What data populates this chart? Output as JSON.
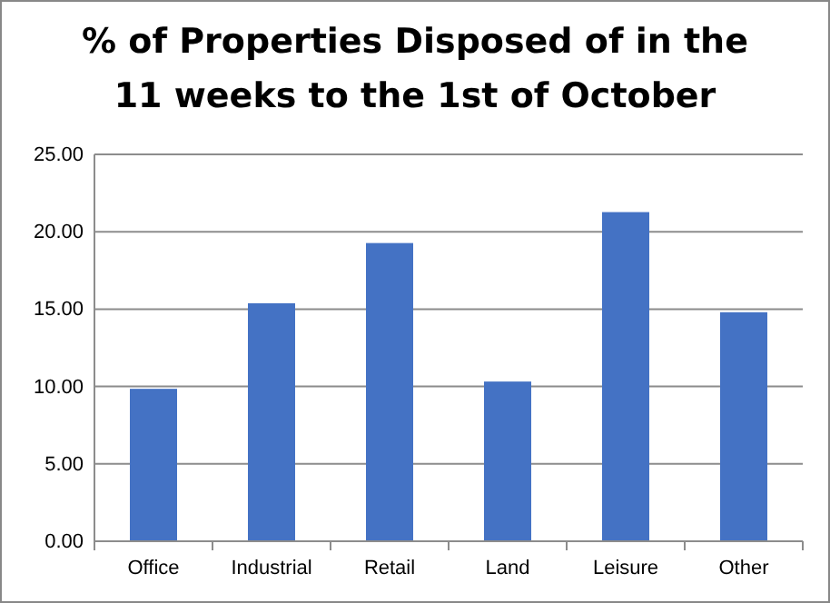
{
  "chart_data": {
    "type": "bar",
    "title": "% of Properties Disposed of in the\n11 weeks to the 1st of October",
    "categories": [
      "Office",
      "Industrial",
      "Retail",
      "Land",
      "Leisure",
      "Other"
    ],
    "values": [
      9.85,
      15.38,
      19.27,
      10.32,
      21.27,
      14.8
    ],
    "color": "#4472c4",
    "ylim": [
      0,
      25
    ],
    "yticks": [
      {
        "value": 0,
        "label": "0.00"
      },
      {
        "value": 5,
        "label": "5.00"
      },
      {
        "value": 10,
        "label": "10.00"
      },
      {
        "value": 15,
        "label": "15.00"
      },
      {
        "value": 20,
        "label": "20.00"
      },
      {
        "value": 25,
        "label": "25.00"
      }
    ],
    "grid": "y"
  }
}
